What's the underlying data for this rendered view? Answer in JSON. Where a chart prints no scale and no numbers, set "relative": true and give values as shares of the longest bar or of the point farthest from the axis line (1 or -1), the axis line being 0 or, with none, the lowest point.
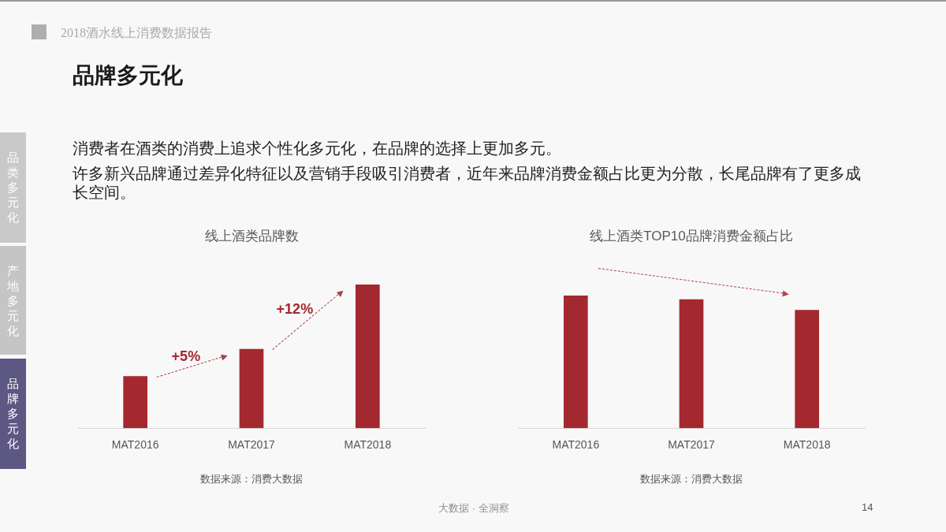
{
  "chart_data": [
    {
      "type": "other",
      "title": "品牌多元化",
      "annotations": [
        "2018酒水线上消费数据报告",
        "消费者在酒类的消费上追求个性化多元化，在品牌的选择上更加多元。",
        "许多新兴品牌通过差异化特征以及营销手段吸引消费者，近年来品牌消费金额占比更为分散，长尾品牌有了更多成长空间。",
        "品类多元化",
        "产地多元化",
        "品牌多元化",
        "大数据 · 全洞察",
        "14"
      ]
    },
    {
      "type": "bar",
      "title": "线上酒类品牌数",
      "categories": [
        "MAT2016",
        "MAT2017",
        "MAT2018"
      ],
      "values": [
        0.36,
        0.55,
        1
      ],
      "color": "#a4282f",
      "relative": true,
      "annotations": [
        "+5%",
        "+12%",
        "数据来源：消费大数据"
      ]
    },
    {
      "type": "bar",
      "title": "线上酒类TOP10品牌消费金额占比",
      "categories": [
        "MAT2016",
        "MAT2017",
        "MAT2018"
      ],
      "values": [
        1,
        0.97,
        0.89
      ],
      "color": "#a4282f",
      "relative": true,
      "annotations": [
        "数据来源：消费大数据"
      ]
    }
  ]
}
